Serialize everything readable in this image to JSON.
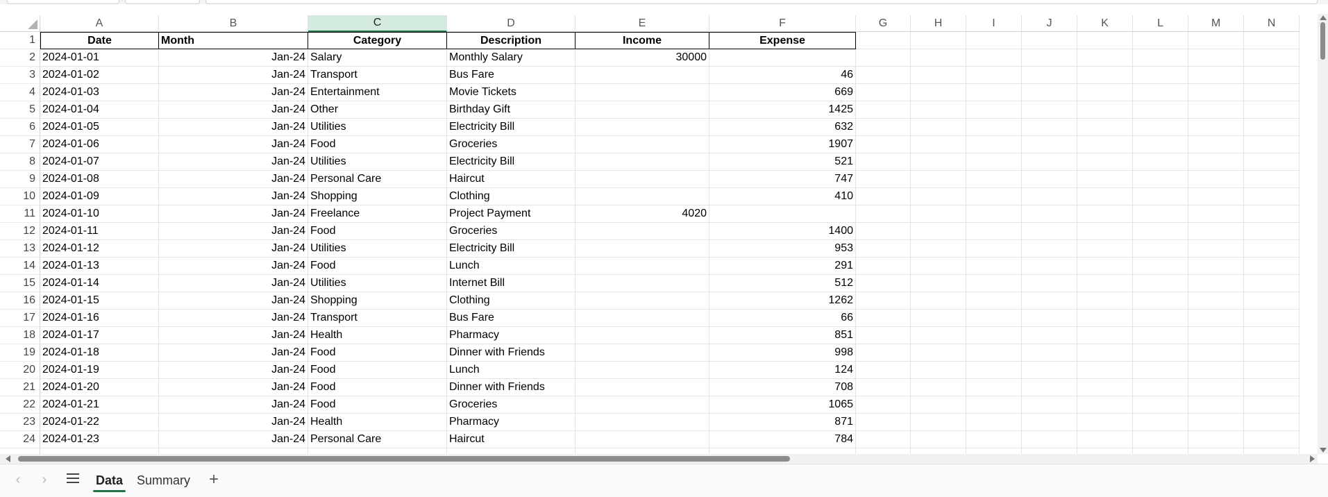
{
  "columns": [
    "A",
    "B",
    "C",
    "D",
    "E",
    "F",
    "G",
    "H",
    "I",
    "J",
    "K",
    "L",
    "M",
    "N"
  ],
  "selected_column": "C",
  "headers": [
    "Date",
    "Month",
    "Category",
    "Description",
    "Income",
    "Expense"
  ],
  "rows": [
    [
      "2024-01-01",
      "Jan-24",
      "Salary",
      "Monthly Salary",
      "30000",
      ""
    ],
    [
      "2024-01-02",
      "Jan-24",
      "Transport",
      "Bus Fare",
      "",
      "46"
    ],
    [
      "2024-01-03",
      "Jan-24",
      "Entertainment",
      "Movie Tickets",
      "",
      "669"
    ],
    [
      "2024-01-04",
      "Jan-24",
      "Other",
      "Birthday Gift",
      "",
      "1425"
    ],
    [
      "2024-01-05",
      "Jan-24",
      "Utilities",
      "Electricity Bill",
      "",
      "632"
    ],
    [
      "2024-01-06",
      "Jan-24",
      "Food",
      "Groceries",
      "",
      "1907"
    ],
    [
      "2024-01-07",
      "Jan-24",
      "Utilities",
      "Electricity Bill",
      "",
      "521"
    ],
    [
      "2024-01-08",
      "Jan-24",
      "Personal Care",
      "Haircut",
      "",
      "747"
    ],
    [
      "2024-01-09",
      "Jan-24",
      "Shopping",
      "Clothing",
      "",
      "410"
    ],
    [
      "2024-01-10",
      "Jan-24",
      "Freelance",
      "Project Payment",
      "4020",
      ""
    ],
    [
      "2024-01-11",
      "Jan-24",
      "Food",
      "Groceries",
      "",
      "1400"
    ],
    [
      "2024-01-12",
      "Jan-24",
      "Utilities",
      "Electricity Bill",
      "",
      "953"
    ],
    [
      "2024-01-13",
      "Jan-24",
      "Food",
      "Lunch",
      "",
      "291"
    ],
    [
      "2024-01-14",
      "Jan-24",
      "Utilities",
      "Internet Bill",
      "",
      "512"
    ],
    [
      "2024-01-15",
      "Jan-24",
      "Shopping",
      "Clothing",
      "",
      "1262"
    ],
    [
      "2024-01-16",
      "Jan-24",
      "Transport",
      "Bus Fare",
      "",
      "66"
    ],
    [
      "2024-01-17",
      "Jan-24",
      "Health",
      "Pharmacy",
      "",
      "851"
    ],
    [
      "2024-01-18",
      "Jan-24",
      "Food",
      "Dinner with Friends",
      "",
      "998"
    ],
    [
      "2024-01-19",
      "Jan-24",
      "Food",
      "Lunch",
      "",
      "124"
    ],
    [
      "2024-01-20",
      "Jan-24",
      "Food",
      "Dinner with Friends",
      "",
      "708"
    ],
    [
      "2024-01-21",
      "Jan-24",
      "Food",
      "Groceries",
      "",
      "1065"
    ],
    [
      "2024-01-22",
      "Jan-24",
      "Health",
      "Pharmacy",
      "",
      "871"
    ],
    [
      "2024-01-23",
      "Jan-24",
      "Personal Care",
      "Haircut",
      "",
      "784"
    ]
  ],
  "sheet_tabs": [
    {
      "label": "Data",
      "active": true
    },
    {
      "label": "Summary",
      "active": false
    }
  ],
  "icons": {
    "prev_sheet": "chevron-left-icon",
    "next_sheet": "chevron-right-icon",
    "all_sheets": "hamburger-menu-icon",
    "add_sheet": "plus-icon"
  },
  "colors": {
    "accent": "#217346",
    "selected_header": "#d3ecdf"
  }
}
